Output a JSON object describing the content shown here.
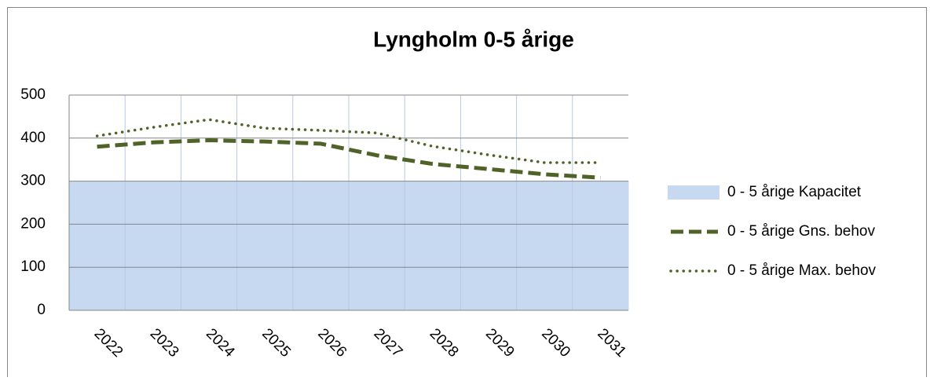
{
  "chart_data": {
    "type": "line",
    "title": "Lyngholm 0-5 årige",
    "categories": [
      "2022",
      "2023",
      "2024",
      "2025",
      "2026",
      "2027",
      "2028",
      "2029",
      "2030",
      "2031"
    ],
    "series": [
      {
        "name": "0 - 5 årige Kapacitet",
        "kind": "area",
        "color": "#c6d9f1",
        "values": [
          300,
          300,
          300,
          300,
          300,
          300,
          300,
          300,
          300,
          300
        ]
      },
      {
        "name": "0 - 5 årige Gns. behov",
        "kind": "dashed",
        "color": "#4f6228",
        "values": [
          380,
          390,
          395,
          392,
          387,
          360,
          340,
          328,
          316,
          308
        ]
      },
      {
        "name": "0 - 5 årige Max. behov",
        "kind": "dotted",
        "color": "#4f6228",
        "values": [
          405,
          425,
          443,
          423,
          418,
          412,
          381,
          361,
          343,
          343
        ]
      }
    ],
    "ylim": [
      0,
      500
    ],
    "yticks": [
      0,
      100,
      200,
      300,
      400,
      500
    ],
    "grid": true,
    "legend": "right"
  }
}
